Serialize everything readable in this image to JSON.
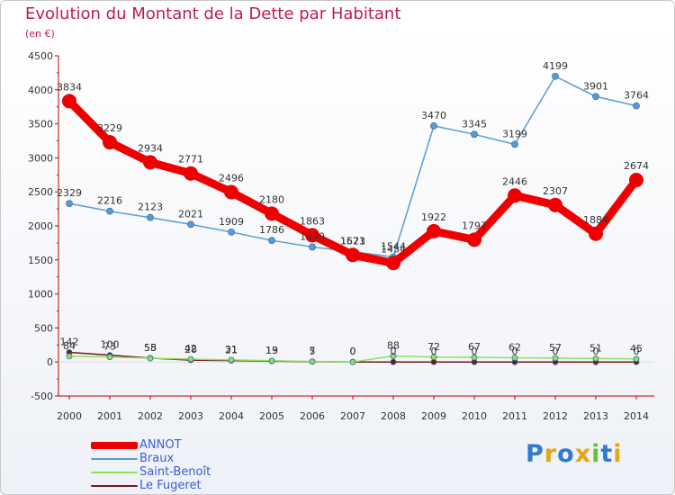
{
  "title": "Evolution du Montant de la Dette par Habitant",
  "subtitle": "(en €)",
  "logo": {
    "text": "Proxiti",
    "letters": [
      {
        "ch": "P",
        "color": "#2e7bcf"
      },
      {
        "ch": "r",
        "color": "#e8a317"
      },
      {
        "ch": "o",
        "color": "#2e7bcf"
      },
      {
        "ch": "x",
        "color": "#e8a317"
      },
      {
        "ch": "i",
        "color": "#6cbf3a"
      },
      {
        "ch": "t",
        "color": "#2e7bcf"
      },
      {
        "ch": "i",
        "color": "#e8a317"
      }
    ]
  },
  "chart_data": {
    "type": "line",
    "title": "Evolution du Montant de la Dette par Habitant",
    "ylabel": "(en €)",
    "xlabel": "",
    "x": [
      "2000",
      "2001",
      "2002",
      "2003",
      "2004",
      "2005",
      "2006",
      "2007",
      "2008",
      "2009",
      "2010",
      "2011",
      "2012",
      "2013",
      "2014"
    ],
    "ylim": [
      -500,
      4500
    ],
    "yticks": [
      -500,
      0,
      500,
      1000,
      1500,
      2000,
      2500,
      3000,
      3500,
      4000,
      4500
    ],
    "grid": false,
    "legend_position": "bottom-left",
    "series": [
      {
        "name": "ANNOT",
        "color": "#ee0000",
        "width": 9,
        "marker": 8,
        "values": [
          3834,
          3229,
          2934,
          2771,
          2496,
          2180,
          1863,
          1573,
          1454,
          1922,
          1797,
          2446,
          2307,
          1884,
          2674
        ],
        "labels": [
          "3834",
          "3229",
          "2934",
          "2771",
          "2496",
          "2180",
          "1863",
          "1573",
          "1454",
          "1922",
          "1797",
          "2446",
          "2307",
          "1884",
          "2674"
        ]
      },
      {
        "name": "Braux",
        "color": "#5b9bd5",
        "width": 1.5,
        "marker": 3.5,
        "values": [
          2329,
          2216,
          2123,
          2021,
          1909,
          1786,
          1690,
          1621,
          1544,
          3470,
          3345,
          3199,
          4199,
          3901,
          3764
        ],
        "labels": [
          "2329",
          "2216",
          "2123",
          "2021",
          "1909",
          "1786",
          "1690",
          "1621",
          "1544",
          "3470",
          "3345",
          "3199",
          "4199",
          "3901",
          "3764"
        ]
      },
      {
        "name": "Saint-Benoît",
        "color": "#90e060",
        "width": 1.5,
        "marker": 3,
        "values": [
          84,
          73,
          55,
          42,
          31,
          19,
          7,
          0,
          88,
          72,
          67,
          62,
          57,
          51,
          45
        ],
        "labels": [
          "84",
          "73",
          "55",
          "42",
          "31",
          "19",
          "7",
          "0",
          "88",
          "72",
          "67",
          "62",
          "57",
          "51",
          "45"
        ]
      },
      {
        "name": "Le Fugeret",
        "color": "#6b1a1a",
        "width": 1.5,
        "marker": 3,
        "values": [
          142,
          100,
          58,
          28,
          21,
          13,
          5,
          0,
          0,
          0,
          0,
          0,
          0,
          0,
          0
        ],
        "labels": [
          "142",
          "100",
          "58",
          "28",
          "21",
          "13",
          "5",
          "0",
          "0",
          "0",
          "0",
          "0",
          "0",
          "0",
          "0"
        ]
      }
    ]
  }
}
